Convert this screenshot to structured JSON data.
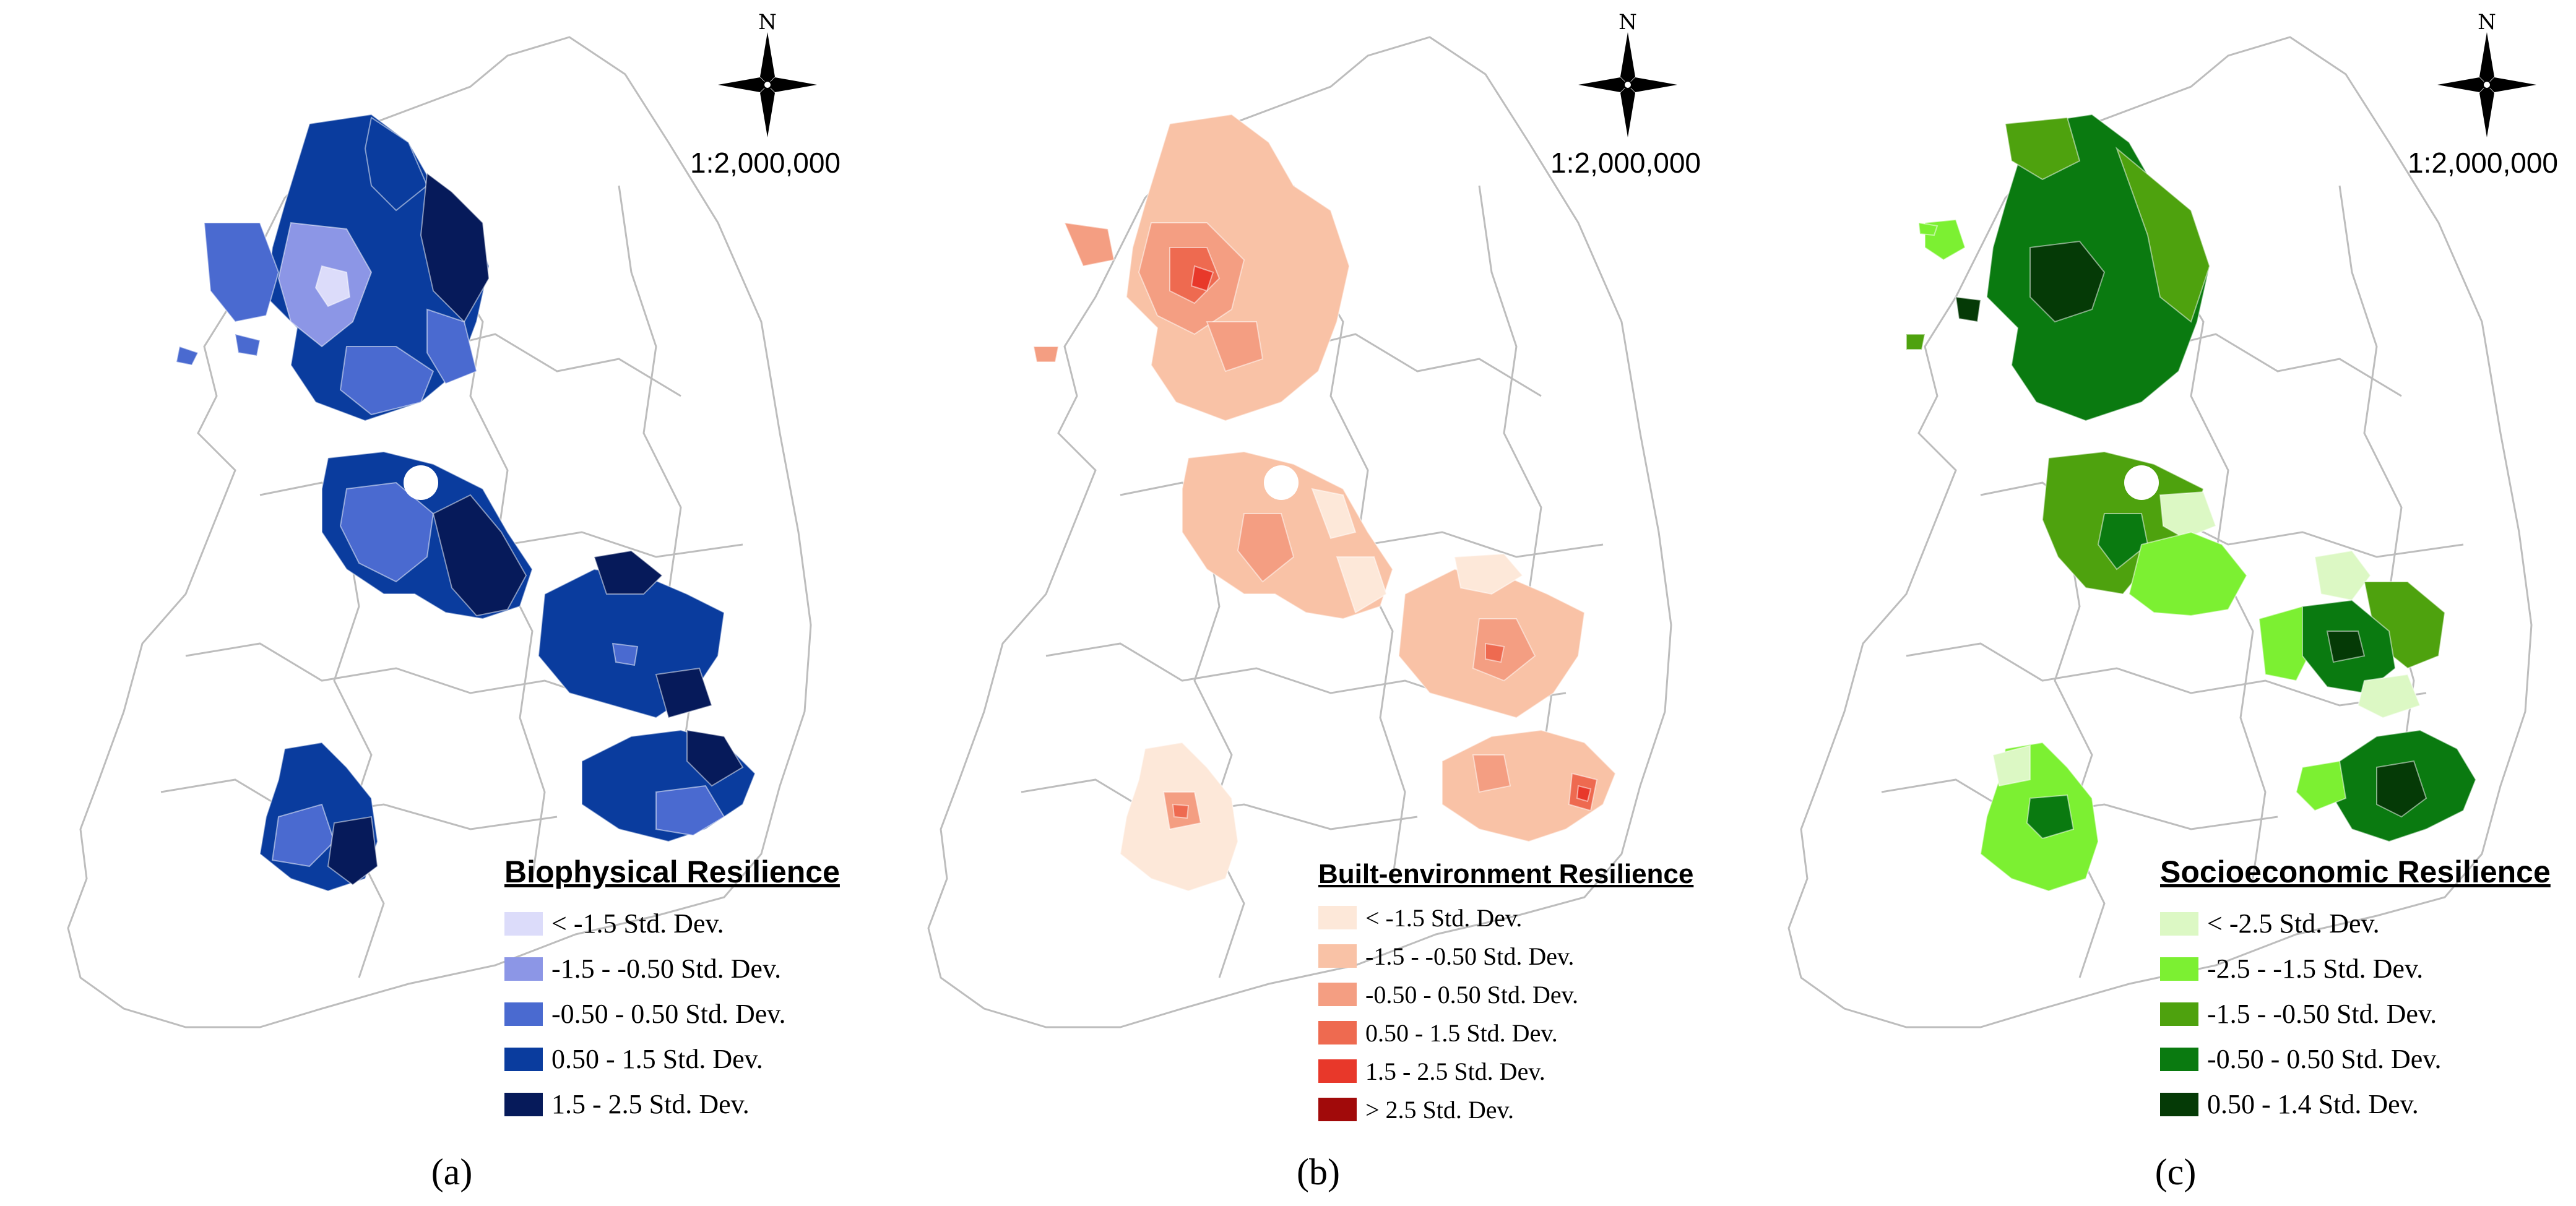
{
  "figure": {
    "panels": [
      {
        "id": "a",
        "caption": "(a)",
        "north_label": "N",
        "scale": "1:2,000,000",
        "legend": {
          "title": "Biophysical Resilience",
          "items": [
            {
              "label": "< -1.5 Std. Dev.",
              "color": "#dcdcfa"
            },
            {
              "label": "-1.5 - -0.50 Std. Dev.",
              "color": "#8c96e6"
            },
            {
              "label": "-0.50 - 0.50 Std. Dev.",
              "color": "#4a6ad0"
            },
            {
              "label": "0.50 - 1.5 Std. Dev.",
              "color": "#0a3c9e"
            },
            {
              "label": "1.5 - 2.5 Std. Dev.",
              "color": "#061a5a"
            }
          ]
        },
        "outline_color": "#bdbdbd"
      },
      {
        "id": "b",
        "caption": "(b)",
        "north_label": "N",
        "scale": "1:2,000,000",
        "legend": {
          "title": "Built-environment Resilience",
          "items": [
            {
              "label": "< -1.5 Std. Dev.",
              "color": "#fde8d9"
            },
            {
              "label": "-1.5 - -0.50 Std. Dev.",
              "color": "#f9c2a6"
            },
            {
              "label": "-0.50 - 0.50 Std. Dev.",
              "color": "#f49e82"
            },
            {
              "label": "0.50 - 1.5 Std. Dev.",
              "color": "#ee6a50"
            },
            {
              "label": "1.5 - 2.5 Std. Dev.",
              "color": "#e8382a"
            },
            {
              "label": "> 2.5 Std. Dev.",
              "color": "#a10a0a"
            }
          ]
        },
        "outline_color": "#bdbdbd"
      },
      {
        "id": "c",
        "caption": "(c)",
        "north_label": "N",
        "scale": "1:2,000,000",
        "legend": {
          "title": "Socioeconomic Resilience",
          "items": [
            {
              "label": "< -2.5 Std. Dev.",
              "color": "#dcf8c4"
            },
            {
              "label": "-2.5 - -1.5 Std. Dev.",
              "color": "#7cf032"
            },
            {
              "label": "-1.5 - -0.50 Std. Dev.",
              "color": "#4ea20e"
            },
            {
              "label": "-0.50 - 0.50 Std. Dev.",
              "color": "#0a7a10"
            },
            {
              "label": "0.50 - 1.4 Std. Dev.",
              "color": "#053a06"
            }
          ]
        },
        "outline_color": "#bdbdbd"
      }
    ]
  }
}
